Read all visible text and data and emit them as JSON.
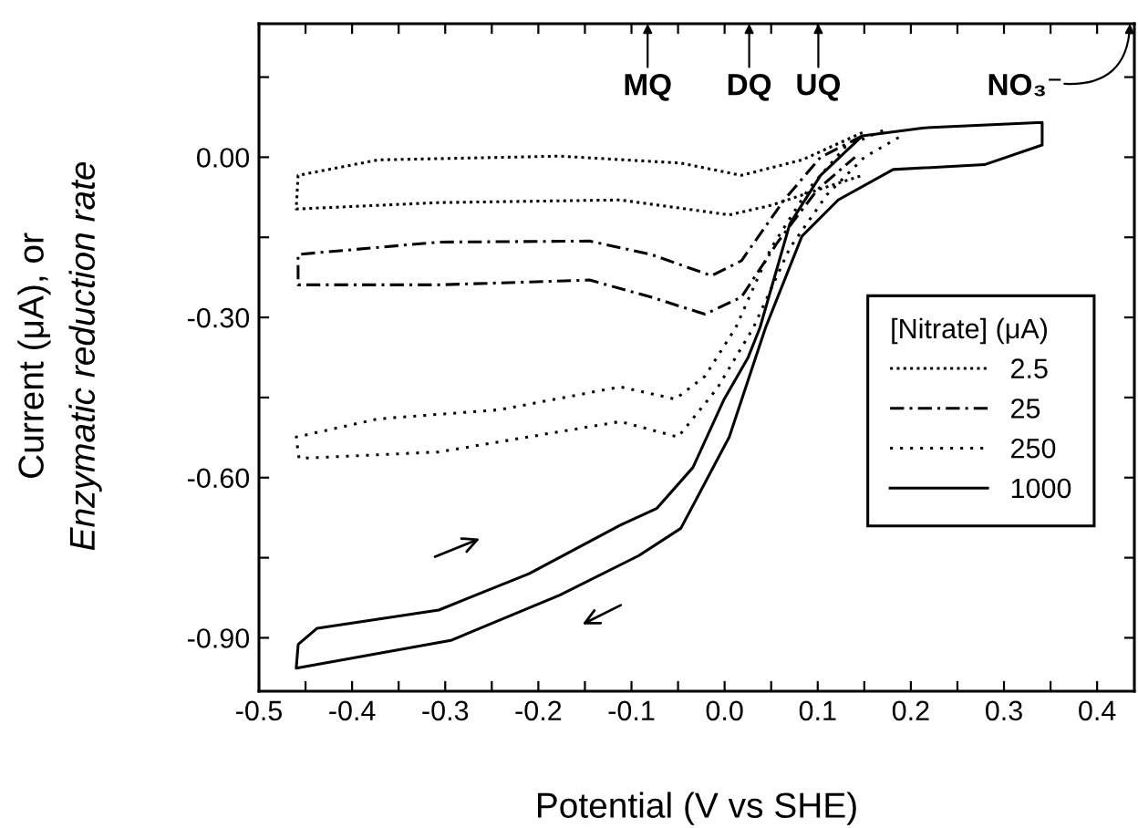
{
  "chart_data": {
    "type": "line",
    "xlabel": "Potential (V vs SHE)",
    "ylabel": "Current (μA), or\nEnzymatic reduction rate",
    "legend_title": "[Nitrate] (μA)",
    "legend": "right",
    "grid": false,
    "xlim": [
      -0.5,
      0.44
    ],
    "ylim": [
      -1.0,
      0.25
    ],
    "xticks": [
      -0.5,
      {
        "value": -0.45,
        "label": null
      },
      -0.4,
      {
        "value": -0.35,
        "label": null
      },
      -0.3,
      {
        "value": -0.25,
        "label": null
      },
      -0.2,
      {
        "value": -0.15,
        "label": null
      },
      -0.1,
      {
        "value": -0.05,
        "label": null
      },
      {
        "value": 0.0,
        "label": "0.0"
      },
      {
        "value": 0.05,
        "label": null
      },
      0.1,
      {
        "value": 0.15,
        "label": null
      },
      0.2,
      {
        "value": 0.25,
        "label": null
      },
      0.3,
      {
        "value": 0.35,
        "label": null
      },
      0.4
    ],
    "yticks": [
      {
        "value": -0.9,
        "label": "-0.90"
      },
      {
        "value": -0.75,
        "label": null
      },
      {
        "value": -0.6,
        "label": "-0.60"
      },
      {
        "value": -0.45,
        "label": null
      },
      {
        "value": -0.3,
        "label": "-0.30"
      },
      {
        "value": -0.15,
        "label": null
      },
      {
        "value": 0.0,
        "label": "0.00"
      },
      {
        "value": 0.15,
        "label": null
      }
    ],
    "annotations": [
      "MQ",
      "DQ",
      "UQ",
      "NO₃⁻"
    ],
    "series": [
      {
        "name": "2.5",
        "color": "#000000",
        "line_style": "densely dotted",
        "x": [
          0.148,
          0.083,
          0.018,
          -0.047,
          -0.177,
          -0.372,
          -0.458,
          -0.46,
          -0.307,
          -0.112,
          0.005,
          0.05,
          0.109,
          0.148
        ],
        "values": [
          0.046,
          -0.005,
          -0.034,
          -0.011,
          0.002,
          -0.005,
          -0.034,
          -0.097,
          -0.085,
          -0.08,
          -0.108,
          -0.09,
          -0.056,
          -0.034
        ]
      },
      {
        "name": "25",
        "color": "#000000",
        "line_style": "dashdot",
        "x": [
          0.148,
          0.103,
          0.064,
          0.018,
          -0.014,
          -0.079,
          -0.145,
          -0.307,
          -0.458,
          -0.458,
          -0.307,
          -0.145,
          -0.079,
          -0.021,
          0.018,
          0.057,
          0.1,
          0.14
        ],
        "values": [
          0.04,
          0.0,
          -0.08,
          -0.194,
          -0.222,
          -0.182,
          -0.157,
          -0.159,
          -0.182,
          -0.239,
          -0.239,
          -0.23,
          -0.262,
          -0.294,
          -0.262,
          -0.159,
          -0.06,
          0.0
        ]
      },
      {
        "name": "250",
        "color": "#000000",
        "line_style": "dotted",
        "x": [
          0.17,
          0.13,
          0.09,
          0.05,
          0.012,
          -0.021,
          -0.053,
          -0.112,
          -0.242,
          -0.372,
          -0.46,
          -0.457,
          -0.307,
          -0.112,
          -0.05,
          -0.008,
          0.031,
          0.07,
          0.11,
          0.15,
          0.19
        ],
        "values": [
          0.05,
          0.02,
          -0.06,
          -0.17,
          -0.319,
          -0.41,
          -0.453,
          -0.43,
          -0.473,
          -0.49,
          -0.524,
          -0.564,
          -0.552,
          -0.495,
          -0.524,
          -0.433,
          -0.319,
          -0.17,
          -0.07,
          0.0,
          0.04
        ]
      },
      {
        "name": "1000",
        "color": "#000000",
        "line_style": "solid",
        "x": [
          -0.457,
          -0.4375,
          -0.307,
          -0.21,
          -0.112,
          -0.073,
          -0.034,
          -0.001,
          0.025,
          0.038,
          0.07,
          0.103,
          0.148,
          0.214,
          0.341,
          0.341,
          0.279,
          0.181,
          0.122,
          0.083,
          0.044,
          0.005,
          -0.047,
          -0.092,
          -0.177,
          -0.294,
          -0.46,
          -0.458
        ],
        "values": [
          -0.911,
          -0.882,
          -0.848,
          -0.78,
          -0.689,
          -0.658,
          -0.581,
          -0.455,
          -0.376,
          -0.319,
          -0.125,
          -0.034,
          0.04,
          0.055,
          0.065,
          0.023,
          -0.014,
          -0.023,
          -0.08,
          -0.148,
          -0.319,
          -0.524,
          -0.695,
          -0.746,
          -0.82,
          -0.905,
          -0.957,
          -0.915
        ]
      }
    ]
  }
}
